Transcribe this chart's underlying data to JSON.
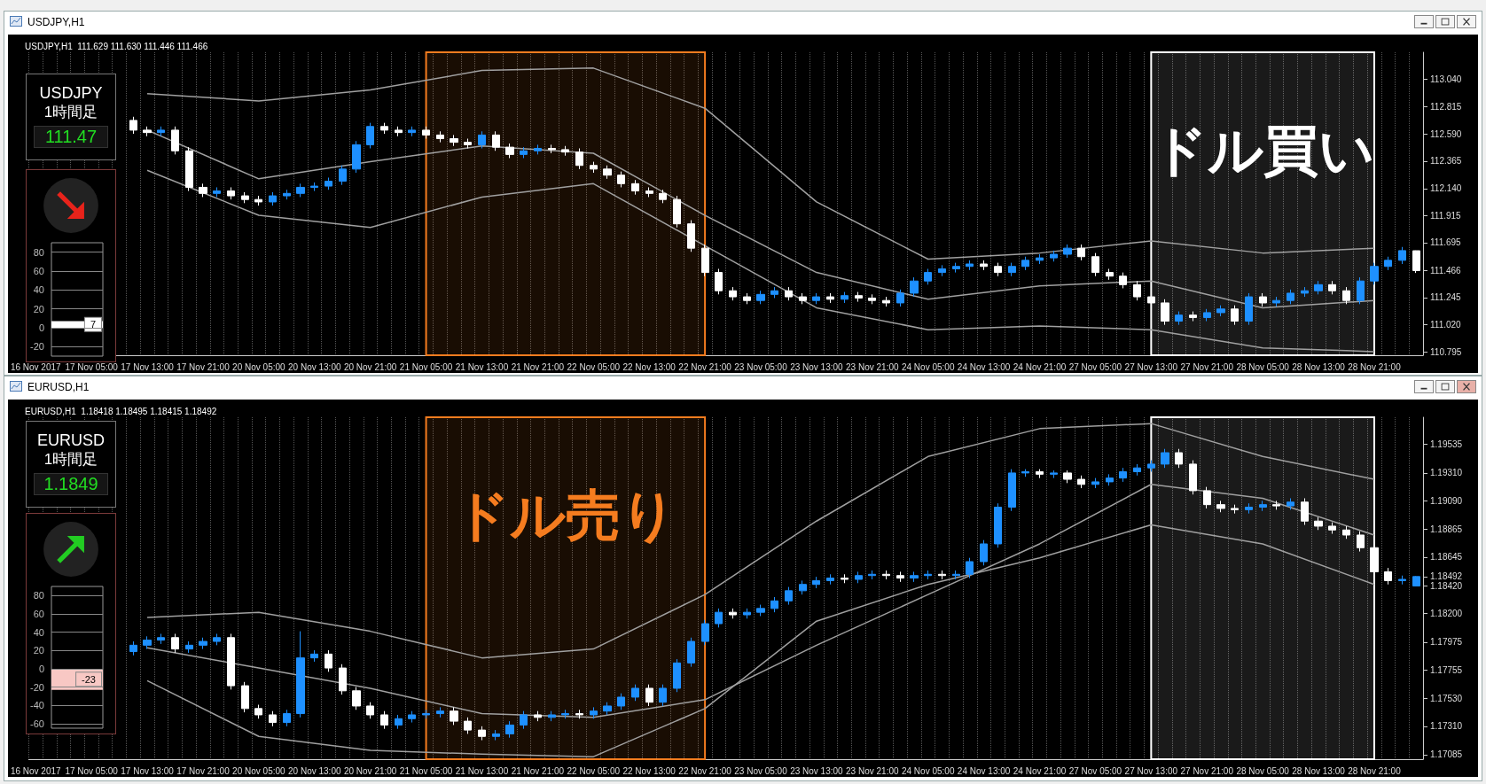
{
  "chart_data": [
    {
      "type": "candlestick",
      "title": "USDJPY,H1",
      "subtitle": "USDJPY,H1  111.629 111.630 111.446 111.466",
      "categories": [
        "16 Nov 2017",
        null,
        null,
        null,
        "17 Nov 05:00",
        null,
        null,
        null,
        "17 Nov 13:00",
        null,
        null,
        null,
        "17 Nov 21:00",
        null,
        null,
        null,
        "20 Nov 05:00",
        null,
        null,
        null,
        "20 Nov 13:00",
        null,
        null,
        null,
        "20 Nov 21:00",
        null,
        null,
        null,
        "21 Nov 05:00",
        null,
        null,
        null,
        "21 Nov 13:00",
        null,
        null,
        null,
        "21 Nov 21:00",
        null,
        null,
        null,
        "22 Nov 05:00",
        null,
        null,
        null,
        "22 Nov 13:00",
        null,
        null,
        null,
        "22 Nov 21:00",
        null,
        null,
        null,
        "23 Nov 05:00",
        null,
        null,
        null,
        "23 Nov 13:00",
        null,
        null,
        null,
        "23 Nov 21:00",
        null,
        null,
        null,
        "24 Nov 05:00",
        null,
        null,
        null,
        "24 Nov 13:00",
        null,
        null,
        null,
        "24 Nov 21:00",
        null,
        null,
        null,
        "27 Nov 05:00",
        null,
        null,
        null,
        "27 Nov 13:00",
        null,
        null,
        null,
        "27 Nov 21:00",
        null,
        null,
        null,
        "28 Nov 05:00",
        null,
        null,
        null,
        "28 Nov 13:00",
        null,
        null,
        null,
        "28 Nov 21:00",
        null,
        null,
        null
      ],
      "ohlc": [
        null,
        null,
        null,
        null,
        null,
        null,
        null,
        [
          112.7,
          112.73,
          112.59,
          112.62
        ],
        [
          112.62,
          112.65,
          112.57,
          112.6
        ],
        [
          112.6,
          112.65,
          112.57,
          112.62
        ],
        [
          112.62,
          112.65,
          112.42,
          112.45
        ],
        [
          112.45,
          112.48,
          112.12,
          112.15
        ],
        [
          112.15,
          112.18,
          112.07,
          112.1
        ],
        [
          112.1,
          112.15,
          112.07,
          112.12
        ],
        [
          112.12,
          112.15,
          112.05,
          112.08
        ],
        [
          112.08,
          112.11,
          112.02,
          112.05
        ],
        [
          112.05,
          112.08,
          112.0,
          112.03
        ],
        [
          112.03,
          112.11,
          112.0,
          112.08
        ],
        [
          112.08,
          112.13,
          112.05,
          112.1
        ],
        [
          112.1,
          112.18,
          112.07,
          112.15
        ],
        [
          112.15,
          112.19,
          112.12,
          112.16
        ],
        [
          112.16,
          112.23,
          112.13,
          112.2
        ],
        [
          112.2,
          112.33,
          112.17,
          112.3
        ],
        [
          112.3,
          112.53,
          112.27,
          112.5
        ],
        [
          112.5,
          112.68,
          112.47,
          112.65
        ],
        [
          112.65,
          112.68,
          112.59,
          112.62
        ],
        [
          112.62,
          112.65,
          112.57,
          112.6
        ],
        [
          112.6,
          112.65,
          112.57,
          112.62
        ],
        [
          112.62,
          112.65,
          112.55,
          112.58
        ],
        [
          112.58,
          112.61,
          112.52,
          112.55
        ],
        [
          112.55,
          112.58,
          112.49,
          112.52
        ],
        [
          112.52,
          112.55,
          112.47,
          112.5
        ],
        [
          112.5,
          112.61,
          112.47,
          112.58
        ],
        [
          112.58,
          112.61,
          112.45,
          112.48
        ],
        [
          112.48,
          112.51,
          112.39,
          112.42
        ],
        [
          112.42,
          112.48,
          112.39,
          112.45
        ],
        [
          112.45,
          112.5,
          112.42,
          112.47
        ],
        [
          112.47,
          112.5,
          112.43,
          112.46
        ],
        [
          112.46,
          112.49,
          112.41,
          112.44
        ],
        [
          112.44,
          112.47,
          112.3,
          112.33
        ],
        [
          112.33,
          112.36,
          112.27,
          112.3
        ],
        [
          112.3,
          112.33,
          112.22,
          112.25
        ],
        [
          112.25,
          112.28,
          112.15,
          112.18
        ],
        [
          112.18,
          112.21,
          112.09,
          112.12
        ],
        [
          112.12,
          112.15,
          112.07,
          112.1
        ],
        [
          112.1,
          112.13,
          112.02,
          112.05
        ],
        [
          112.05,
          112.08,
          111.82,
          111.85
        ],
        [
          111.85,
          111.88,
          111.62,
          111.65
        ],
        [
          111.65,
          111.68,
          111.42,
          111.45
        ],
        [
          111.45,
          111.48,
          111.27,
          111.3
        ],
        [
          111.3,
          111.33,
          111.22,
          111.25
        ],
        [
          111.25,
          111.28,
          111.19,
          111.22
        ],
        [
          111.22,
          111.3,
          111.19,
          111.27
        ],
        [
          111.27,
          111.33,
          111.24,
          111.3
        ],
        [
          111.3,
          111.33,
          111.22,
          111.25
        ],
        [
          111.25,
          111.28,
          111.19,
          111.22
        ],
        [
          111.22,
          111.28,
          111.19,
          111.25
        ],
        [
          111.25,
          111.28,
          111.2,
          111.23
        ],
        [
          111.23,
          111.29,
          111.2,
          111.26
        ],
        [
          111.26,
          111.29,
          111.21,
          111.24
        ],
        [
          111.24,
          111.27,
          111.19,
          111.22
        ],
        [
          111.22,
          111.25,
          111.17,
          111.2
        ],
        [
          111.2,
          111.31,
          111.17,
          111.28
        ],
        [
          111.28,
          111.41,
          111.25,
          111.38
        ],
        [
          111.38,
          111.48,
          111.35,
          111.45
        ],
        [
          111.45,
          111.51,
          111.42,
          111.48
        ],
        [
          111.48,
          111.53,
          111.45,
          111.5
        ],
        [
          111.5,
          111.55,
          111.47,
          111.52
        ],
        [
          111.52,
          111.55,
          111.47,
          111.5
        ],
        [
          111.5,
          111.53,
          111.42,
          111.45
        ],
        [
          111.45,
          111.53,
          111.42,
          111.5
        ],
        [
          111.5,
          111.58,
          111.47,
          111.55
        ],
        [
          111.55,
          111.6,
          111.52,
          111.57
        ],
        [
          111.57,
          111.63,
          111.54,
          111.6
        ],
        [
          111.6,
          111.68,
          111.57,
          111.65
        ],
        [
          111.65,
          111.68,
          111.55,
          111.58
        ],
        [
          111.58,
          111.61,
          111.42,
          111.45
        ],
        [
          111.45,
          111.48,
          111.39,
          111.42
        ],
        [
          111.42,
          111.45,
          111.32,
          111.35
        ],
        [
          111.35,
          111.38,
          111.22,
          111.25
        ],
        [
          111.25,
          111.28,
          111.17,
          111.2
        ],
        [
          111.2,
          111.23,
          111.02,
          111.05
        ],
        [
          111.05,
          111.13,
          111.02,
          111.1
        ],
        [
          111.1,
          111.13,
          111.05,
          111.08
        ],
        [
          111.08,
          111.15,
          111.05,
          111.12
        ],
        [
          111.12,
          111.18,
          111.09,
          111.15
        ],
        [
          111.15,
          111.18,
          111.02,
          111.05
        ],
        [
          111.05,
          111.28,
          111.02,
          111.25
        ],
        [
          111.25,
          111.28,
          111.17,
          111.2
        ],
        [
          111.2,
          111.25,
          111.17,
          111.22
        ],
        [
          111.22,
          111.31,
          111.19,
          111.28
        ],
        [
          111.28,
          111.33,
          111.25,
          111.3
        ],
        [
          111.3,
          111.38,
          111.27,
          111.35
        ],
        [
          111.35,
          111.38,
          111.27,
          111.3
        ],
        [
          111.3,
          111.33,
          111.19,
          111.22
        ],
        [
          111.22,
          111.41,
          111.19,
          111.38
        ],
        [
          111.38,
          111.53,
          111.35,
          111.5
        ],
        [
          111.5,
          111.58,
          111.47,
          111.55
        ],
        [
          111.55,
          111.66,
          111.52,
          111.63
        ],
        [
          111.629,
          111.63,
          111.446,
          111.466
        ]
      ],
      "colors": [
        null,
        null,
        null,
        null,
        null,
        null,
        null,
        "#ffffff",
        "#ffffff",
        "#1e90ff",
        "#ffffff",
        "#ffffff",
        "#ffffff",
        "#1e90ff",
        "#ffffff",
        "#ffffff",
        "#ffffff",
        "#1e90ff",
        "#1e90ff",
        "#1e90ff",
        "#1e90ff",
        "#1e90ff",
        "#1e90ff",
        "#1e90ff",
        "#1e90ff",
        "#ffffff",
        "#ffffff",
        "#1e90ff",
        "#ffffff",
        "#ffffff",
        "#ffffff",
        "#ffffff",
        "#1e90ff",
        "#ffffff",
        "#ffffff",
        "#1e90ff",
        "#1e90ff",
        "#ffffff",
        "#ffffff",
        "#ffffff",
        "#ffffff",
        "#ffffff",
        "#ffffff",
        "#ffffff",
        "#ffffff",
        "#ffffff",
        "#ffffff",
        "#ffffff",
        "#ffffff",
        "#ffffff",
        "#ffffff",
        "#ffffff",
        "#1e90ff",
        "#1e90ff",
        "#ffffff",
        "#ffffff",
        "#1e90ff",
        "#ffffff",
        "#1e90ff",
        "#ffffff",
        "#ffffff",
        "#ffffff",
        "#1e90ff",
        "#1e90ff",
        "#1e90ff",
        "#1e90ff",
        "#1e90ff",
        "#1e90ff",
        "#ffffff",
        "#ffffff",
        "#1e90ff",
        "#1e90ff",
        "#1e90ff",
        "#1e90ff",
        "#1e90ff",
        "#ffffff",
        "#ffffff",
        "#ffffff",
        "#ffffff",
        "#ffffff",
        "#ffffff",
        "#ffffff",
        "#1e90ff",
        "#ffffff",
        "#1e90ff",
        "#1e90ff",
        "#ffffff",
        "#1e90ff",
        "#ffffff",
        "#1e90ff",
        "#1e90ff",
        "#1e90ff",
        "#1e90ff",
        "#ffffff",
        "#ffffff",
        "#1e90ff",
        "#1e90ff",
        "#1e90ff",
        "#1e90ff",
        "#ffffff"
      ],
      "series": [
        {
          "type": "line",
          "color": "#a0a0a0",
          "x": [
            "16 Nov 2017",
            "17 Nov 13:00",
            "20 Nov 05:00",
            "20 Nov 21:00",
            "21 Nov 13:00",
            "22 Nov 05:00",
            "22 Nov 21:00",
            "23 Nov 13:00",
            "24 Nov 05:00",
            "24 Nov 21:00",
            "27 Nov 13:00",
            "28 Nov 05:00",
            "28 Nov 21:00"
          ],
          "values": [
            null,
            112.92,
            112.86,
            112.95,
            113.11,
            113.13,
            112.8,
            112.03,
            111.56,
            111.61,
            111.71,
            111.61,
            111.65
          ]
        },
        {
          "type": "line",
          "color": "#a0a0a0",
          "x": [
            "16 Nov 2017",
            "17 Nov 13:00",
            "20 Nov 05:00",
            "20 Nov 21:00",
            "21 Nov 13:00",
            "22 Nov 05:00",
            "22 Nov 21:00",
            "23 Nov 13:00",
            "24 Nov 05:00",
            "24 Nov 21:00",
            "27 Nov 13:00",
            "28 Nov 05:00",
            "28 Nov 21:00"
          ],
          "values": [
            null,
            112.62,
            112.22,
            112.36,
            112.49,
            112.43,
            111.92,
            111.45,
            111.23,
            111.34,
            111.38,
            111.16,
            111.22
          ]
        },
        {
          "type": "line",
          "color": "#a0a0a0",
          "x": [
            "16 Nov 2017",
            "17 Nov 13:00",
            "20 Nov 05:00",
            "20 Nov 21:00",
            "21 Nov 13:00",
            "22 Nov 05:00",
            "22 Nov 21:00",
            "23 Nov 13:00",
            "24 Nov 05:00",
            "24 Nov 21:00",
            "27 Nov 13:00",
            "28 Nov 05:00",
            "28 Nov 21:00"
          ],
          "values": [
            null,
            112.29,
            111.92,
            111.82,
            112.07,
            112.18,
            111.67,
            111.16,
            110.98,
            111.01,
            110.98,
            110.83,
            110.8
          ]
        }
      ],
      "ylim": [
        110.77,
        113.26
      ],
      "yticks": [
        {
          "value": 113.04,
          "label": "113.040"
        },
        {
          "value": 112.815,
          "label": "112.815"
        },
        {
          "value": 112.59,
          "label": "112.590"
        },
        {
          "value": 112.365,
          "label": "112.365"
        },
        {
          "value": 112.14,
          "label": "112.140"
        },
        {
          "value": 111.915,
          "label": "111.915"
        },
        {
          "value": 111.695,
          "label": "111.695"
        },
        111.466,
        {
          "value": 111.245,
          "label": "111.245"
        },
        {
          "value": 111.02,
          "label": "111.020"
        },
        {
          "value": 110.795,
          "label": "110.795"
        }
      ],
      "grid": "x",
      "bands": [
        {
          "axis": "x",
          "from": "21 Nov 05:00",
          "to": "22 Nov 21:00",
          "color": "#f57c1f"
        },
        {
          "axis": "x",
          "from": "27 Nov 13:00",
          "to": "28 Nov 21:00",
          "color": "#ffffff",
          "label": "ドル買い"
        }
      ]
    },
    {
      "type": "other",
      "title": "USDJPY",
      "subtitle": "1時間足",
      "annotations": [
        "111.47"
      ]
    },
    {
      "type": "bar",
      "categories": [
        null
      ],
      "values": [
        7
      ],
      "colors": [
        "#ffffff"
      ],
      "ylim": [
        -30,
        90
      ],
      "yticks": [
        80,
        60,
        40,
        20,
        0,
        -20
      ],
      "data_labels": true,
      "grid": "y",
      "tick_labels": "y"
    },
    {
      "type": "candlestick",
      "title": "EURUSD,H1",
      "subtitle": "EURUSD,H1  1.18418 1.18495 1.18415 1.18492",
      "categories": [
        "16 Nov 2017",
        null,
        null,
        null,
        "17 Nov 05:00",
        null,
        null,
        null,
        "17 Nov 13:00",
        null,
        null,
        null,
        "17 Nov 21:00",
        null,
        null,
        null,
        "20 Nov 05:00",
        null,
        null,
        null,
        "20 Nov 13:00",
        null,
        null,
        null,
        "20 Nov 21:00",
        null,
        null,
        null,
        "21 Nov 05:00",
        null,
        null,
        null,
        "21 Nov 13:00",
        null,
        null,
        null,
        "21 Nov 21:00",
        null,
        null,
        null,
        "22 Nov 05:00",
        null,
        null,
        null,
        "22 Nov 13:00",
        null,
        null,
        null,
        "22 Nov 21:00",
        null,
        null,
        null,
        "23 Nov 05:00",
        null,
        null,
        null,
        "23 Nov 13:00",
        null,
        null,
        null,
        "23 Nov 21:00",
        null,
        null,
        null,
        "24 Nov 05:00",
        null,
        null,
        null,
        "24 Nov 13:00",
        null,
        null,
        null,
        "24 Nov 21:00",
        null,
        null,
        null,
        "27 Nov 05:00",
        null,
        null,
        null,
        "27 Nov 13:00",
        null,
        null,
        null,
        "27 Nov 21:00",
        null,
        null,
        null,
        "28 Nov 05:00",
        null,
        null,
        null,
        "28 Nov 13:00",
        null,
        null,
        null,
        "28 Nov 21:00",
        null,
        null,
        null
      ],
      "ohlc": [
        null,
        null,
        null,
        null,
        null,
        null,
        null,
        [
          1.179,
          1.1798,
          1.1787,
          1.1795
        ],
        [
          1.1795,
          1.1802,
          1.1792,
          1.1799
        ],
        [
          1.1799,
          1.1804,
          1.1796,
          1.1801
        ],
        [
          1.1801,
          1.1804,
          1.1789,
          1.1792
        ],
        [
          1.1792,
          1.1798,
          1.1789,
          1.1795
        ],
        [
          1.1795,
          1.1801,
          1.1792,
          1.1798
        ],
        [
          1.1798,
          1.1804,
          1.1795,
          1.1801
        ],
        [
          1.1801,
          1.1804,
          1.176,
          1.1763
        ],
        [
          1.1763,
          1.1766,
          1.1742,
          1.1745
        ],
        [
          1.1745,
          1.1748,
          1.1737,
          1.174
        ],
        [
          1.174,
          1.1743,
          1.1731,
          1.1734
        ],
        [
          1.1734,
          1.1744,
          1.1731,
          1.1741
        ],
        [
          1.1741,
          1.1806,
          1.1738,
          1.1785
        ],
        [
          1.1785,
          1.1791,
          1.1782,
          1.1788
        ],
        [
          1.1788,
          1.1791,
          1.1774,
          1.1777
        ],
        [
          1.1777,
          1.178,
          1.1756,
          1.1759
        ],
        [
          1.1759,
          1.1762,
          1.1744,
          1.1747
        ],
        [
          1.1747,
          1.175,
          1.1737,
          1.174
        ],
        [
          1.174,
          1.1743,
          1.1729,
          1.1732
        ],
        [
          1.1732,
          1.174,
          1.1729,
          1.1737
        ],
        [
          1.1737,
          1.1743,
          1.1734,
          1.174
        ],
        [
          1.174,
          1.1744,
          1.1737,
          1.1741
        ],
        [
          1.1741,
          1.1746,
          1.1738,
          1.1743
        ],
        [
          1.1743,
          1.1746,
          1.1732,
          1.1735
        ],
        [
          1.1735,
          1.1738,
          1.1725,
          1.1728
        ],
        [
          1.1728,
          1.1731,
          1.172,
          1.1723
        ],
        [
          1.1723,
          1.1728,
          1.172,
          1.1725
        ],
        [
          1.1725,
          1.1735,
          1.1722,
          1.1732
        ],
        [
          1.1732,
          1.1743,
          1.1729,
          1.174
        ],
        [
          1.174,
          1.1743,
          1.1735,
          1.1738
        ],
        [
          1.1738,
          1.1743,
          1.1735,
          1.174
        ],
        [
          1.174,
          1.1744,
          1.1737,
          1.1741
        ],
        [
          1.1741,
          1.1744,
          1.1737,
          1.174
        ],
        [
          1.174,
          1.1746,
          1.1737,
          1.1743
        ],
        [
          1.1743,
          1.175,
          1.174,
          1.1747
        ],
        [
          1.1747,
          1.1757,
          1.1744,
          1.1754
        ],
        [
          1.1754,
          1.1764,
          1.1751,
          1.1761
        ],
        [
          1.1761,
          1.1764,
          1.1747,
          1.175
        ],
        [
          1.175,
          1.1764,
          1.1747,
          1.1761
        ],
        [
          1.1761,
          1.1784,
          1.1758,
          1.1781
        ],
        [
          1.1781,
          1.1801,
          1.1778,
          1.1798
        ],
        [
          1.1798,
          1.1815,
          1.1795,
          1.1812
        ],
        [
          1.1812,
          1.1824,
          1.1809,
          1.1821
        ],
        [
          1.1821,
          1.1824,
          1.1816,
          1.1819
        ],
        [
          1.1819,
          1.1824,
          1.1816,
          1.1821
        ],
        [
          1.1821,
          1.1827,
          1.1818,
          1.1824
        ],
        [
          1.1824,
          1.1833,
          1.1821,
          1.183
        ],
        [
          1.183,
          1.1841,
          1.1827,
          1.1838
        ],
        [
          1.1838,
          1.1846,
          1.1835,
          1.1843
        ],
        [
          1.1843,
          1.1849,
          1.184,
          1.1846
        ],
        [
          1.1846,
          1.1851,
          1.1843,
          1.1848
        ],
        [
          1.1848,
          1.1851,
          1.1844,
          1.1847
        ],
        [
          1.1847,
          1.1853,
          1.1844,
          1.185
        ],
        [
          1.185,
          1.1854,
          1.1847,
          1.1851
        ],
        [
          1.1851,
          1.1854,
          1.1847,
          1.185
        ],
        [
          1.185,
          1.1853,
          1.1845,
          1.1848
        ],
        [
          1.1848,
          1.1853,
          1.1845,
          1.185
        ],
        [
          1.185,
          1.1854,
          1.1847,
          1.1851
        ],
        [
          1.1851,
          1.1854,
          1.1847,
          1.185
        ],
        [
          1.185,
          1.1854,
          1.1847,
          1.1851
        ],
        [
          1.1851,
          1.1864,
          1.1848,
          1.1861
        ],
        [
          1.1861,
          1.1878,
          1.1858,
          1.1875
        ],
        [
          1.1875,
          1.1907,
          1.1872,
          1.1904
        ],
        [
          1.1904,
          1.1934,
          1.1901,
          1.1931
        ],
        [
          1.1931,
          1.1934,
          1.1928,
          1.1932
        ],
        [
          1.1932,
          1.1934,
          1.1927,
          1.193
        ],
        [
          1.193,
          1.1933,
          1.1927,
          1.1931
        ],
        [
          1.1931,
          1.1933,
          1.1923,
          1.1926
        ],
        [
          1.1926,
          1.1929,
          1.1919,
          1.1922
        ],
        [
          1.1922,
          1.1927,
          1.1919,
          1.1924
        ],
        [
          1.1924,
          1.193,
          1.1921,
          1.1927
        ],
        [
          1.1927,
          1.1935,
          1.1924,
          1.1932
        ],
        [
          1.1932,
          1.1938,
          1.1929,
          1.1935
        ],
        [
          1.1935,
          1.1941,
          1.1932,
          1.1938
        ],
        [
          1.1938,
          1.195,
          1.1935,
          1.1947
        ],
        [
          1.1947,
          1.195,
          1.1935,
          1.1938
        ],
        [
          1.1938,
          1.1941,
          1.1914,
          1.1917
        ],
        [
          1.1917,
          1.192,
          1.1903,
          1.1906
        ],
        [
          1.1906,
          1.1909,
          1.19,
          1.1903
        ],
        [
          1.1903,
          1.1906,
          1.1899,
          1.1902
        ],
        [
          1.1902,
          1.1907,
          1.1899,
          1.1904
        ],
        [
          1.1904,
          1.1909,
          1.1901,
          1.1906
        ],
        [
          1.1906,
          1.1909,
          1.1902,
          1.1905
        ],
        [
          1.1905,
          1.1911,
          1.1902,
          1.1908
        ],
        [
          1.1908,
          1.1911,
          1.189,
          1.1893
        ],
        [
          1.1893,
          1.1896,
          1.1886,
          1.1889
        ],
        [
          1.1889,
          1.1892,
          1.1883,
          1.1886
        ],
        [
          1.1886,
          1.1889,
          1.1879,
          1.1882
        ],
        [
          1.1882,
          1.1885,
          1.1869,
          1.1872
        ],
        [
          1.1872,
          1.1875,
          1.185,
          1.1853
        ],
        [
          1.1853,
          1.1856,
          1.1843,
          1.1846
        ],
        [
          1.1846,
          1.185,
          1.1843,
          1.1847
        ],
        [
          1.18418,
          1.18495,
          1.18415,
          1.18492
        ]
      ],
      "colors": [
        null,
        null,
        null,
        null,
        null,
        null,
        null,
        "#1e90ff",
        "#1e90ff",
        "#1e90ff",
        "#ffffff",
        "#1e90ff",
        "#1e90ff",
        "#1e90ff",
        "#ffffff",
        "#ffffff",
        "#ffffff",
        "#ffffff",
        "#1e90ff",
        "#1e90ff",
        "#1e90ff",
        "#ffffff",
        "#ffffff",
        "#ffffff",
        "#ffffff",
        "#ffffff",
        "#1e90ff",
        "#1e90ff",
        "#1e90ff",
        "#1e90ff",
        "#ffffff",
        "#ffffff",
        "#ffffff",
        "#1e90ff",
        "#1e90ff",
        "#1e90ff",
        "#ffffff",
        "#1e90ff",
        "#1e90ff",
        "#ffffff",
        "#1e90ff",
        "#1e90ff",
        "#1e90ff",
        "#1e90ff",
        "#ffffff",
        "#1e90ff",
        "#1e90ff",
        "#1e90ff",
        "#1e90ff",
        "#1e90ff",
        "#ffffff",
        "#1e90ff",
        "#1e90ff",
        "#1e90ff",
        "#1e90ff",
        "#1e90ff",
        "#1e90ff",
        "#1e90ff",
        "#ffffff",
        "#1e90ff",
        "#1e90ff",
        "#ffffff",
        "#ffffff",
        "#1e90ff",
        "#1e90ff",
        "#ffffff",
        "#1e90ff",
        "#1e90ff",
        "#1e90ff",
        "#1e90ff",
        "#1e90ff",
        "#1e90ff",
        "#ffffff",
        "#1e90ff",
        "#ffffff",
        "#ffffff",
        "#1e90ff",
        "#1e90ff",
        "#1e90ff",
        "#1e90ff",
        "#1e90ff",
        "#1e90ff",
        "#ffffff",
        "#ffffff",
        "#ffffff",
        "#ffffff",
        "#ffffff",
        "#1e90ff",
        "#1e90ff",
        "#ffffff",
        "#1e90ff",
        "#ffffff",
        "#ffffff",
        "#ffffff",
        "#ffffff",
        "#ffffff",
        "#ffffff",
        "#ffffff",
        "#1e90ff",
        "#1e90ff"
      ],
      "series": [
        {
          "type": "line",
          "color": "#a0a0a0",
          "x": [
            "16 Nov 2017",
            "17 Nov 13:00",
            "20 Nov 05:00",
            "20 Nov 21:00",
            "21 Nov 13:00",
            "22 Nov 05:00",
            "22 Nov 21:00",
            "23 Nov 13:00",
            "24 Nov 05:00",
            "24 Nov 21:00",
            "27 Nov 13:00",
            "28 Nov 05:00",
            "28 Nov 21:00"
          ],
          "values": [
            null,
            1.1817,
            1.1821,
            1.1806,
            1.1785,
            1.1792,
            1.1835,
            1.1893,
            1.1944,
            1.1966,
            1.197,
            1.1944,
            1.1926
          ]
        },
        {
          "type": "line",
          "color": "#a0a0a0",
          "x": [
            "16 Nov 2017",
            "17 Nov 13:00",
            "20 Nov 05:00",
            "20 Nov 21:00",
            "21 Nov 13:00",
            "22 Nov 05:00",
            "22 Nov 21:00",
            "23 Nov 13:00",
            "24 Nov 05:00",
            "24 Nov 21:00",
            "27 Nov 13:00",
            "28 Nov 05:00",
            "28 Nov 21:00"
          ],
          "values": [
            null,
            1.1793,
            1.1777,
            1.1761,
            1.1741,
            1.1738,
            1.1752,
            1.1795,
            1.1835,
            1.1875,
            1.1922,
            1.1911,
            1.1882
          ]
        },
        {
          "type": "line",
          "color": "#a0a0a0",
          "x": [
            "16 Nov 2017",
            "17 Nov 13:00",
            "20 Nov 05:00",
            "20 Nov 21:00",
            "21 Nov 13:00",
            "22 Nov 05:00",
            "22 Nov 21:00",
            "23 Nov 13:00",
            "24 Nov 05:00",
            "24 Nov 21:00",
            "27 Nov 13:00",
            "28 Nov 05:00",
            "28 Nov 21:00"
          ],
          "values": [
            null,
            1.1767,
            1.1723,
            1.1712,
            1.1709,
            1.1707,
            1.1745,
            1.1814,
            1.1843,
            1.1864,
            1.189,
            1.1875,
            1.1843
          ]
        }
      ],
      "ylim": [
        1.1705,
        1.1975
      ],
      "yticks": [
        1.19535,
        {
          "value": 1.1931,
          "label": "1.19310"
        },
        {
          "value": 1.1909,
          "label": "1.19090"
        },
        1.18865,
        1.18645,
        1.18492,
        {
          "value": 1.1842,
          "label": "1.18420"
        },
        {
          "value": 1.182,
          "label": "1.18200"
        },
        1.17975,
        1.17755,
        {
          "value": 1.1753,
          "label": "1.17530"
        },
        {
          "value": 1.1731,
          "label": "1.17310"
        },
        1.17085
      ],
      "grid": "x",
      "bands": [
        {
          "axis": "x",
          "from": "21 Nov 05:00",
          "to": "22 Nov 21:00",
          "color": "#f57c1f",
          "label": "ドル売り"
        },
        {
          "axis": "x",
          "from": "27 Nov 13:00",
          "to": "28 Nov 21:00",
          "color": "#ffffff"
        }
      ]
    },
    {
      "type": "other",
      "title": "EURUSD",
      "subtitle": "1時間足",
      "annotations": [
        "1.1849"
      ]
    },
    {
      "type": "bar",
      "categories": [
        null
      ],
      "values": [
        -23
      ],
      "colors": [
        "#f8c8c4"
      ],
      "ylim": [
        -65,
        90
      ],
      "yticks": [
        80,
        60,
        40,
        20,
        0,
        -20,
        -40,
        -60
      ],
      "data_labels": true,
      "grid": "y",
      "tick_labels": "y"
    }
  ]
}
